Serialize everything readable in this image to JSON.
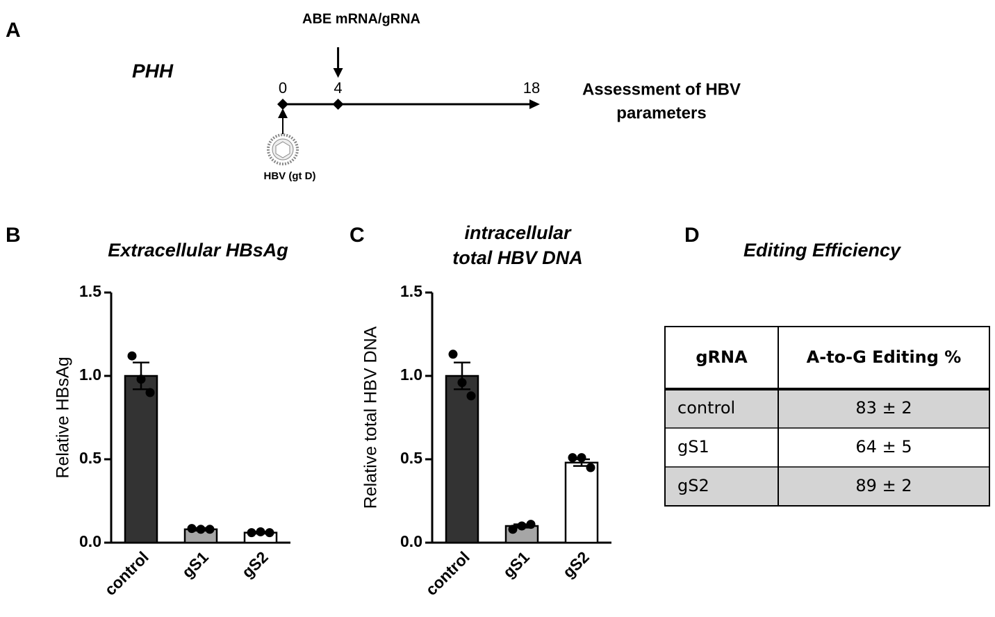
{
  "panel_a": {
    "label": "A",
    "cell": "PHH",
    "treatment": "ABE mRNA/gRNA",
    "timepoints": [
      0,
      4,
      18
    ],
    "readout": [
      "Assessment of HBV",
      "parameters"
    ],
    "virus": "HBV (gt D)"
  },
  "chart_data": [
    {
      "type": "bar",
      "panel": "B",
      "title": [
        "Extracellular HBsAg"
      ],
      "ylabel": "Relative HBsAg",
      "categories": [
        "control",
        "gS1",
        "gS2"
      ],
      "values": [
        1.0,
        0.08,
        0.06
      ],
      "errors": [
        0.08,
        0.008,
        0.006
      ],
      "points": [
        [
          1.12,
          0.98,
          0.9
        ],
        [
          0.085,
          0.08,
          0.08
        ],
        [
          0.06,
          0.065,
          0.06
        ]
      ],
      "colors": [
        "#333333",
        "#a6a6a6",
        "#ffffff"
      ],
      "ylim": [
        0,
        1.5
      ],
      "yticks": [
        {
          "value": 0,
          "label": "0.0"
        },
        0.5,
        {
          "value": 1,
          "label": "1.0"
        },
        1.5
      ]
    },
    {
      "type": "bar",
      "panel": "C",
      "title": [
        "intracellular",
        "total HBV DNA"
      ],
      "ylabel": "Relative total HBV DNA",
      "categories": [
        "control",
        "gS1",
        "gS2"
      ],
      "values": [
        1.0,
        0.1,
        0.48
      ],
      "errors": [
        0.08,
        0.01,
        0.02
      ],
      "points": [
        [
          1.13,
          0.96,
          0.88
        ],
        [
          0.08,
          0.1,
          0.11
        ],
        [
          0.51,
          0.51,
          0.45
        ]
      ],
      "colors": [
        "#333333",
        "#a6a6a6",
        "#ffffff"
      ],
      "ylim": [
        0,
        1.5
      ],
      "yticks": [
        {
          "value": 0,
          "label": "0.0"
        },
        0.5,
        {
          "value": 1,
          "label": "1.0"
        },
        1.5
      ]
    }
  ],
  "panel_d": {
    "label": "D",
    "title": "Editing Efficiency",
    "table": {
      "header": [
        "gRNA",
        "A-to-G Editing %"
      ],
      "rows": [
        [
          "control",
          "83 ± 2"
        ],
        [
          "gS1",
          "64 ± 5"
        ],
        [
          "gS2",
          "89 ± 2"
        ]
      ]
    }
  }
}
